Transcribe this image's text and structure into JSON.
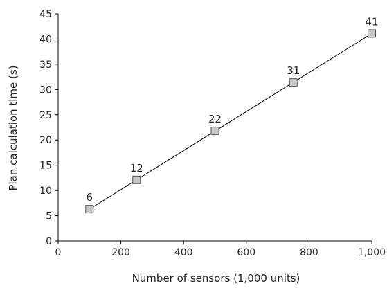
{
  "chart_data": {
    "type": "scatter",
    "xlabel": "Number of sensors (1,000 units)",
    "ylabel": "Plan calculation time (s)",
    "xlim": [
      0,
      1000
    ],
    "ylim": [
      0,
      45
    ],
    "x_ticks": [
      0,
      200,
      400,
      600,
      800,
      1000
    ],
    "x_tick_labels": [
      "0",
      "200",
      "400",
      "600",
      "800",
      "1,000"
    ],
    "y_ticks": [
      0,
      5,
      10,
      15,
      20,
      25,
      30,
      35,
      40,
      45
    ],
    "y_tick_labels": [
      "0",
      "5",
      "10",
      "15",
      "20",
      "25",
      "30",
      "35",
      "40",
      "45"
    ],
    "grid": false,
    "trendline": "linear",
    "series": [
      {
        "x": [
          100,
          250,
          500,
          750,
          1000
        ],
        "y": [
          6.3,
          12.1,
          21.8,
          31.4,
          41.1
        ],
        "labels": [
          "6",
          "12",
          "22",
          "31",
          "41"
        ]
      }
    ],
    "colors": {
      "marker_fill": "#c8c8c8",
      "marker_stroke": "#555555",
      "line": "#000000",
      "axis": "#000000"
    }
  }
}
